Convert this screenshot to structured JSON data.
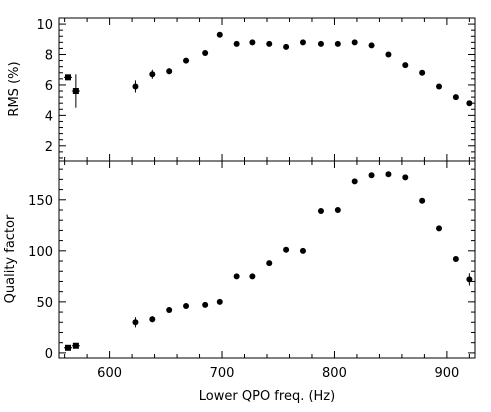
{
  "chart_data": [
    {
      "type": "scatter",
      "panel": "top",
      "ylabel": "RMS (%)",
      "xlabel": "",
      "xlim": [
        555,
        925
      ],
      "ylim": [
        1,
        10.4
      ],
      "yticks": [
        "2",
        "4",
        "6",
        "8",
        "10"
      ],
      "ytick_values": [
        2,
        4,
        6,
        8,
        10
      ],
      "series": [
        {
          "marker": "square",
          "points": [
            {
              "x": 563,
              "y": 6.5,
              "yerr": 0.0
            },
            {
              "x": 570,
              "y": 5.6,
              "yerr": 1.1
            }
          ]
        },
        {
          "marker": "circle",
          "points": [
            {
              "x": 623,
              "y": 5.9,
              "yerr": 0.4
            },
            {
              "x": 638,
              "y": 6.7,
              "yerr": 0.3
            },
            {
              "x": 653,
              "y": 6.9,
              "yerr": 0.2
            },
            {
              "x": 668,
              "y": 7.6,
              "yerr": 0.15
            },
            {
              "x": 685,
              "y": 8.1,
              "yerr": 0.15
            },
            {
              "x": 698,
              "y": 9.3,
              "yerr": 0.15
            },
            {
              "x": 713,
              "y": 8.7,
              "yerr": 0.15
            },
            {
              "x": 727,
              "y": 8.8,
              "yerr": 0.15
            },
            {
              "x": 742,
              "y": 8.7,
              "yerr": 0.15
            },
            {
              "x": 757,
              "y": 8.5,
              "yerr": 0.15
            },
            {
              "x": 772,
              "y": 8.8,
              "yerr": 0.15
            },
            {
              "x": 788,
              "y": 8.7,
              "yerr": 0.15
            },
            {
              "x": 803,
              "y": 8.7,
              "yerr": 0.15
            },
            {
              "x": 818,
              "y": 8.8,
              "yerr": 0.15
            },
            {
              "x": 833,
              "y": 8.6,
              "yerr": 0.15
            },
            {
              "x": 848,
              "y": 8.0,
              "yerr": 0.15
            },
            {
              "x": 863,
              "y": 7.3,
              "yerr": 0.15
            },
            {
              "x": 878,
              "y": 6.8,
              "yerr": 0.15
            },
            {
              "x": 893,
              "y": 5.9,
              "yerr": 0.15
            },
            {
              "x": 908,
              "y": 5.2,
              "yerr": 0.15
            },
            {
              "x": 920,
              "y": 4.8,
              "yerr": 0.15
            }
          ]
        }
      ]
    },
    {
      "type": "scatter",
      "panel": "bottom",
      "ylabel": "Quality factor",
      "xlabel": "Lower QPO freq. (Hz)",
      "xlim": [
        555,
        925
      ],
      "ylim": [
        -5,
        188
      ],
      "xticks": [
        "600",
        "700",
        "800",
        "900"
      ],
      "xtick_values": [
        600,
        700,
        800,
        900
      ],
      "yticks": [
        "0",
        "50",
        "100",
        "150"
      ],
      "ytick_values": [
        0,
        50,
        100,
        150
      ],
      "series": [
        {
          "marker": "square",
          "points": [
            {
              "x": 563,
              "y": 5,
              "yerr": 1
            },
            {
              "x": 570,
              "y": 7,
              "yerr": 1
            }
          ]
        },
        {
          "marker": "circle",
          "points": [
            {
              "x": 623,
              "y": 30,
              "yerr": 5
            },
            {
              "x": 638,
              "y": 33,
              "yerr": 3
            },
            {
              "x": 653,
              "y": 42,
              "yerr": 2
            },
            {
              "x": 668,
              "y": 46,
              "yerr": 2
            },
            {
              "x": 685,
              "y": 47,
              "yerr": 2
            },
            {
              "x": 698,
              "y": 50,
              "yerr": 2
            },
            {
              "x": 713,
              "y": 75,
              "yerr": 2
            },
            {
              "x": 727,
              "y": 75,
              "yerr": 2
            },
            {
              "x": 742,
              "y": 88,
              "yerr": 2
            },
            {
              "x": 757,
              "y": 101,
              "yerr": 2
            },
            {
              "x": 772,
              "y": 100,
              "yerr": 2
            },
            {
              "x": 788,
              "y": 139,
              "yerr": 2
            },
            {
              "x": 803,
              "y": 140,
              "yerr": 2
            },
            {
              "x": 818,
              "y": 168,
              "yerr": 2
            },
            {
              "x": 833,
              "y": 174,
              "yerr": 2
            },
            {
              "x": 848,
              "y": 175,
              "yerr": 2
            },
            {
              "x": 863,
              "y": 172,
              "yerr": 2
            },
            {
              "x": 878,
              "y": 149,
              "yerr": 2
            },
            {
              "x": 893,
              "y": 122,
              "yerr": 2
            },
            {
              "x": 908,
              "y": 92,
              "yerr": 2
            },
            {
              "x": 920,
              "y": 72,
              "yerr": 6
            }
          ]
        }
      ],
      "xminor_step": 20
    }
  ]
}
